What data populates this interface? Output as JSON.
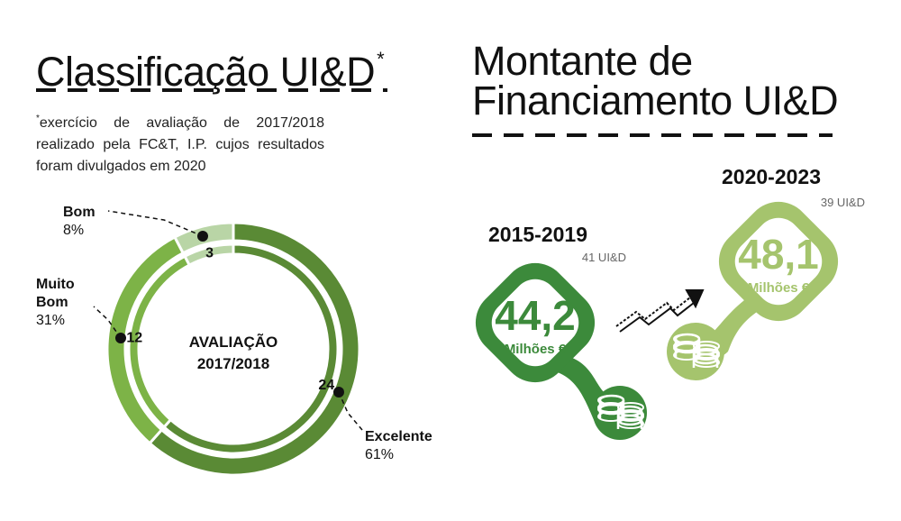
{
  "left_panel": {
    "title": "Classificação UI&D",
    "title_mark": "*",
    "footnote_mark": "*",
    "footnote": "exercício de avaliação de 2017/2018 realizado pela FC&T, I.P. cujos resultados foram divulgados em 2020"
  },
  "right_panel": {
    "title_line1": "Montante de",
    "title_line2": "Financiamento UI&D"
  },
  "chart_data": [
    {
      "type": "pie",
      "subtype": "donut",
      "center_label": [
        "AVALIAÇÃO",
        "2017/2018"
      ],
      "slices": [
        {
          "category": "Excelente",
          "count": 24,
          "percent": "61%",
          "color": "#5a8a35"
        },
        {
          "category": "Muito Bom",
          "count": 12,
          "percent": "31%",
          "color": "#7db347"
        },
        {
          "category": "Bom",
          "count": 3,
          "percent": "8%",
          "color": "#b9d5a6"
        }
      ]
    },
    {
      "type": "bar",
      "periods": [
        {
          "period": "2015-2019",
          "units": "41 UI&D",
          "amount": "44,2",
          "unit_label": "Milhões €",
          "value": 44.2,
          "color": "#3c8a3b"
        },
        {
          "period": "2020-2023",
          "units": "39 UI&D",
          "amount": "48,1",
          "unit_label": "Milhões €",
          "value": 48.1,
          "color": "#a5c46d"
        }
      ]
    }
  ],
  "icons": {
    "trend": "rising-arrow-icon",
    "coins": "coin-stack-icon"
  }
}
